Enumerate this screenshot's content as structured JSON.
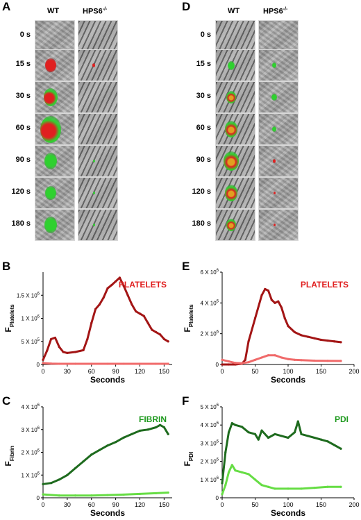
{
  "panels": {
    "A": "A",
    "B": "B",
    "C": "C",
    "D": "D",
    "E": "E",
    "F": "F"
  },
  "microscopy": {
    "col_wt": "WT",
    "col_ko": "HPS6",
    "col_ko_sup": "-/-",
    "times": [
      "0 s",
      "15 s",
      "30 s",
      "60 s",
      "90 s",
      "120 s",
      "180 s"
    ]
  },
  "colors": {
    "wt_platelets": "#a31515",
    "ko_platelets": "#f06a6a",
    "wt_fibrin": "#1e6b1e",
    "ko_fibrin": "#66dd44",
    "label_red": "#e02020",
    "label_green": "#1f9a1f"
  },
  "chart_data": [
    {
      "panel": "B",
      "type": "line",
      "label": "PLATELETS",
      "ylabel_main": "F",
      "ylabel_sub": "Platelets",
      "xlabel": "Seconds",
      "xlim": [
        0,
        160
      ],
      "ylim": [
        0,
        2000000
      ],
      "xticks": [
        "0",
        "30",
        "60",
        "90",
        "120",
        "150"
      ],
      "xtick_values": [
        0,
        30,
        60,
        90,
        120,
        150
      ],
      "yticks": [
        "0",
        "5 X 10",
        "1 X 10",
        "1.5 X 10"
      ],
      "ytick_values": [
        0,
        500000,
        1000000,
        1500000
      ],
      "ytick_exp": [
        "",
        "5",
        "6",
        "6"
      ],
      "series": [
        {
          "color_key": "wt_platelets",
          "x": [
            0,
            5,
            10,
            15,
            20,
            25,
            30,
            40,
            50,
            55,
            60,
            65,
            70,
            75,
            80,
            85,
            90,
            95,
            100,
            105,
            110,
            115,
            120,
            125,
            130,
            135,
            140,
            145,
            150,
            155
          ],
          "values": [
            100000,
            300000,
            550000,
            580000,
            380000,
            270000,
            250000,
            270000,
            310000,
            550000,
            900000,
            1200000,
            1300000,
            1450000,
            1650000,
            1720000,
            1800000,
            1880000,
            1700000,
            1500000,
            1300000,
            1150000,
            1100000,
            1050000,
            900000,
            750000,
            700000,
            650000,
            550000,
            500000
          ]
        },
        {
          "color_key": "ko_platelets",
          "x": [
            0,
            10,
            20,
            40,
            60,
            80,
            100,
            120,
            140,
            155
          ],
          "values": [
            30000,
            20000,
            15000,
            15000,
            15000,
            15000,
            15000,
            15000,
            15000,
            15000
          ]
        }
      ]
    },
    {
      "panel": "C",
      "type": "line",
      "label": "FIBRIN",
      "ylabel_main": "F",
      "ylabel_sub": "Fibrin",
      "xlabel": "Seconds",
      "xlim": [
        0,
        160
      ],
      "ylim": [
        0,
        4000000
      ],
      "xticks": [
        "0",
        "30",
        "60",
        "90",
        "120",
        "150"
      ],
      "xtick_values": [
        0,
        30,
        60,
        90,
        120,
        150
      ],
      "yticks": [
        "0",
        "1 X 10",
        "2 X 10",
        "3 X 10",
        "4 X 10"
      ],
      "ytick_values": [
        0,
        1000000,
        2000000,
        3000000,
        4000000
      ],
      "ytick_exp": [
        "",
        "6",
        "6",
        "6",
        "6"
      ],
      "series": [
        {
          "color_key": "wt_fibrin",
          "x": [
            0,
            10,
            20,
            30,
            40,
            50,
            60,
            70,
            80,
            90,
            100,
            110,
            120,
            130,
            140,
            145,
            150,
            155
          ],
          "values": [
            600000,
            650000,
            800000,
            1000000,
            1300000,
            1600000,
            1900000,
            2100000,
            2300000,
            2450000,
            2650000,
            2800000,
            2950000,
            3000000,
            3100000,
            3200000,
            3100000,
            2800000
          ]
        },
        {
          "color_key": "ko_fibrin",
          "x": [
            0,
            20,
            40,
            60,
            80,
            100,
            120,
            140,
            155
          ],
          "values": [
            150000,
            100000,
            100000,
            100000,
            120000,
            140000,
            170000,
            200000,
            230000
          ]
        }
      ]
    },
    {
      "panel": "E",
      "type": "line",
      "label": "PLATELETS",
      "ylabel_main": "F",
      "ylabel_sub": "Platelets",
      "xlabel": "Seconds",
      "xlim": [
        0,
        200
      ],
      "ylim": [
        0,
        6000000
      ],
      "xticks": [
        "0",
        "50",
        "100",
        "150",
        "200"
      ],
      "xtick_values": [
        0,
        50,
        100,
        150,
        200
      ],
      "yticks": [
        "0",
        "2 X 10",
        "4 X 10",
        "6 X 10"
      ],
      "ytick_values": [
        0,
        2000000,
        4000000,
        6000000
      ],
      "ytick_exp": [
        "",
        "6",
        "6",
        "6"
      ],
      "series": [
        {
          "color_key": "wt_platelets",
          "x": [
            0,
            10,
            20,
            30,
            35,
            40,
            50,
            60,
            65,
            70,
            75,
            80,
            85,
            90,
            95,
            100,
            110,
            120,
            130,
            140,
            150,
            160,
            170,
            180
          ],
          "values": [
            0,
            0,
            0,
            50000,
            300000,
            1500000,
            3000000,
            4500000,
            4900000,
            4800000,
            4200000,
            4000000,
            4100000,
            3700000,
            3000000,
            2500000,
            2100000,
            1900000,
            1800000,
            1700000,
            1600000,
            1550000,
            1500000,
            1450000
          ]
        },
        {
          "color_key": "ko_platelets",
          "x": [
            0,
            10,
            20,
            30,
            40,
            50,
            60,
            70,
            80,
            90,
            100,
            110,
            120,
            140,
            160,
            180
          ],
          "values": [
            300000,
            200000,
            100000,
            80000,
            150000,
            300000,
            450000,
            600000,
            600000,
            450000,
            350000,
            300000,
            280000,
            250000,
            240000,
            230000
          ]
        }
      ]
    },
    {
      "panel": "F",
      "type": "line",
      "label": "PDI",
      "ylabel_main": "F",
      "ylabel_sub": "PDI",
      "xlabel": "Seconds",
      "xlim": [
        0,
        200
      ],
      "ylim": [
        0,
        5000000
      ],
      "xticks": [
        "0",
        "50",
        "100",
        "150",
        "200"
      ],
      "xtick_values": [
        0,
        50,
        100,
        150,
        200
      ],
      "yticks": [
        "0",
        "1 X 10",
        "2 X 10",
        "3 X 10",
        "4 X 10",
        "5 X 10"
      ],
      "ytick_values": [
        0,
        1000000,
        2000000,
        3000000,
        4000000,
        5000000
      ],
      "ytick_exp": [
        "",
        "6",
        "6",
        "6",
        "6",
        "6"
      ],
      "series": [
        {
          "color_key": "wt_fibrin",
          "x": [
            0,
            5,
            10,
            15,
            20,
            30,
            40,
            50,
            55,
            60,
            70,
            80,
            90,
            100,
            110,
            115,
            120,
            130,
            140,
            150,
            160,
            170,
            180
          ],
          "values": [
            800000,
            2500000,
            3600000,
            4100000,
            4000000,
            3900000,
            3600000,
            3500000,
            3200000,
            3700000,
            3300000,
            3500000,
            3400000,
            3300000,
            3600000,
            4200000,
            3500000,
            3400000,
            3300000,
            3200000,
            3100000,
            2900000,
            2700000
          ]
        },
        {
          "color_key": "ko_fibrin",
          "x": [
            0,
            5,
            10,
            15,
            20,
            30,
            40,
            50,
            60,
            70,
            80,
            100,
            120,
            140,
            160,
            180
          ],
          "values": [
            200000,
            700000,
            1400000,
            1800000,
            1500000,
            1400000,
            1300000,
            1000000,
            700000,
            600000,
            500000,
            500000,
            500000,
            550000,
            600000,
            600000
          ]
        }
      ]
    }
  ]
}
